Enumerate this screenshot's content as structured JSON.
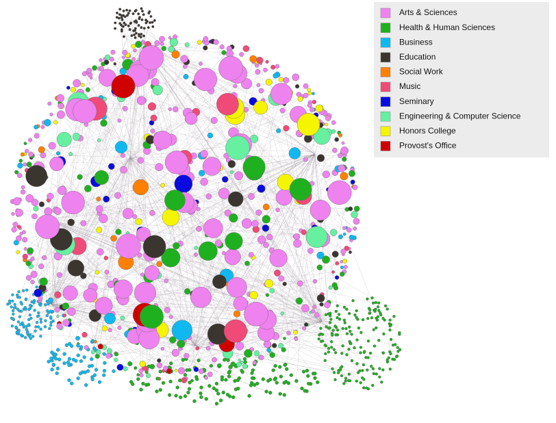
{
  "legend": {
    "items": [
      {
        "label": "Arts & Sciences",
        "color": "#ee82ee"
      },
      {
        "label": "Health & Human Sciences",
        "color": "#1fb01f"
      },
      {
        "label": "Business",
        "color": "#10b8f0"
      },
      {
        "label": "Education",
        "color": "#3b3530"
      },
      {
        "label": "Social Work",
        "color": "#ff8000"
      },
      {
        "label": "Music",
        "color": "#f04a78"
      },
      {
        "label": "Seminary",
        "color": "#0a0ae0"
      },
      {
        "label": "Engineering & Computer Science",
        "color": "#66f0a0"
      },
      {
        "label": "Honors College",
        "color": "#f5f500"
      },
      {
        "label": "Provost's Office",
        "color": "#d00000"
      }
    ]
  }
}
